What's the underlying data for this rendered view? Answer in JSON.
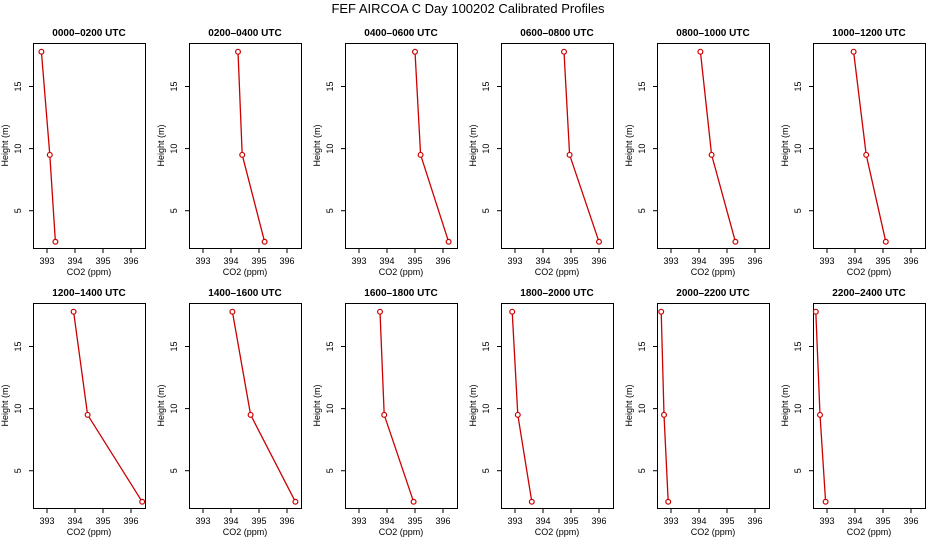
{
  "title": "FEF AIRCOA C  Day 100202  Calibrated Profiles",
  "chart_data": [
    {
      "type": "line",
      "title": "0000–0200 UTC",
      "xlabel": "CO2 (ppm)",
      "ylabel": "Height (m)",
      "xlim": [
        392.5,
        396.5
      ],
      "ylim": [
        2,
        18.5
      ],
      "xticks": [
        393,
        394,
        395,
        396
      ],
      "yticks": [
        5,
        10,
        15
      ],
      "grid": false,
      "series": [
        {
          "color": "#cc0000",
          "x": [
            393.3,
            393.1,
            392.8
          ],
          "y": [
            2.5,
            9.5,
            17.8
          ]
        }
      ]
    },
    {
      "type": "line",
      "title": "0200–0400 UTC",
      "xlabel": "CO2 (ppm)",
      "ylabel": "Height (m)",
      "xlim": [
        392.5,
        396.5
      ],
      "ylim": [
        2,
        18.5
      ],
      "xticks": [
        393,
        394,
        395,
        396
      ],
      "yticks": [
        5,
        10,
        15
      ],
      "grid": false,
      "series": [
        {
          "color": "#cc0000",
          "x": [
            395.2,
            394.4,
            394.25
          ],
          "y": [
            2.5,
            9.5,
            17.8
          ]
        }
      ]
    },
    {
      "type": "line",
      "title": "0400–0600 UTC",
      "xlabel": "CO2 (ppm)",
      "ylabel": "Height (m)",
      "xlim": [
        392.5,
        396.5
      ],
      "ylim": [
        2,
        18.5
      ],
      "xticks": [
        393,
        394,
        395,
        396
      ],
      "yticks": [
        5,
        10,
        15
      ],
      "grid": false,
      "series": [
        {
          "color": "#cc0000",
          "x": [
            396.2,
            395.2,
            395.0
          ],
          "y": [
            2.5,
            9.5,
            17.8
          ]
        }
      ]
    },
    {
      "type": "line",
      "title": "0600–0800 UTC",
      "xlabel": "CO2 (ppm)",
      "ylabel": "Height (m)",
      "xlim": [
        392.5,
        396.5
      ],
      "ylim": [
        2,
        18.5
      ],
      "xticks": [
        393,
        394,
        395,
        396
      ],
      "yticks": [
        5,
        10,
        15
      ],
      "grid": false,
      "series": [
        {
          "color": "#cc0000",
          "x": [
            396.0,
            394.95,
            394.75
          ],
          "y": [
            2.5,
            9.5,
            17.8
          ]
        }
      ]
    },
    {
      "type": "line",
      "title": "0800–1000 UTC",
      "xlabel": "CO2 (ppm)",
      "ylabel": "Height (m)",
      "xlim": [
        392.5,
        396.5
      ],
      "ylim": [
        2,
        18.5
      ],
      "xticks": [
        393,
        394,
        395,
        396
      ],
      "yticks": [
        5,
        10,
        15
      ],
      "grid": false,
      "series": [
        {
          "color": "#cc0000",
          "x": [
            395.3,
            394.45,
            394.05
          ],
          "y": [
            2.5,
            9.5,
            17.8
          ]
        }
      ]
    },
    {
      "type": "line",
      "title": "1000–1200 UTC",
      "xlabel": "CO2 (ppm)",
      "ylabel": "Height (m)",
      "xlim": [
        392.5,
        396.5
      ],
      "ylim": [
        2,
        18.5
      ],
      "xticks": [
        393,
        394,
        395,
        396
      ],
      "yticks": [
        5,
        10,
        15
      ],
      "grid": false,
      "series": [
        {
          "color": "#cc0000",
          "x": [
            395.1,
            394.4,
            393.95
          ],
          "y": [
            2.5,
            9.5,
            17.8
          ]
        }
      ]
    },
    {
      "type": "line",
      "title": "1200–1400 UTC",
      "xlabel": "CO2 (ppm)",
      "ylabel": "Height (m)",
      "xlim": [
        392.5,
        396.5
      ],
      "ylim": [
        2,
        18.5
      ],
      "xticks": [
        393,
        394,
        395,
        396
      ],
      "yticks": [
        5,
        10,
        15
      ],
      "grid": false,
      "series": [
        {
          "color": "#cc0000",
          "x": [
            396.4,
            394.45,
            393.95
          ],
          "y": [
            2.5,
            9.5,
            17.8
          ]
        }
      ]
    },
    {
      "type": "line",
      "title": "1400–1600 UTC",
      "xlabel": "CO2 (ppm)",
      "ylabel": "Height (m)",
      "xlim": [
        392.5,
        396.5
      ],
      "ylim": [
        2,
        18.5
      ],
      "xticks": [
        393,
        394,
        395,
        396
      ],
      "yticks": [
        5,
        10,
        15
      ],
      "grid": false,
      "series": [
        {
          "color": "#cc0000",
          "x": [
            396.3,
            394.7,
            394.05
          ],
          "y": [
            2.5,
            9.5,
            17.8
          ]
        }
      ]
    },
    {
      "type": "line",
      "title": "1600–1800 UTC",
      "xlabel": "CO2 (ppm)",
      "ylabel": "Height (m)",
      "xlim": [
        392.5,
        396.5
      ],
      "ylim": [
        2,
        18.5
      ],
      "xticks": [
        393,
        394,
        395,
        396
      ],
      "yticks": [
        5,
        10,
        15
      ],
      "grid": false,
      "series": [
        {
          "color": "#cc0000",
          "x": [
            394.95,
            393.9,
            393.75
          ],
          "y": [
            2.5,
            9.5,
            17.8
          ]
        }
      ]
    },
    {
      "type": "line",
      "title": "1800–2000 UTC",
      "xlabel": "CO2 (ppm)",
      "ylabel": "Height (m)",
      "xlim": [
        392.5,
        396.5
      ],
      "ylim": [
        2,
        18.5
      ],
      "xticks": [
        393,
        394,
        395,
        396
      ],
      "yticks": [
        5,
        10,
        15
      ],
      "grid": false,
      "series": [
        {
          "color": "#cc0000",
          "x": [
            393.6,
            393.1,
            392.9
          ],
          "y": [
            2.5,
            9.5,
            17.8
          ]
        }
      ]
    },
    {
      "type": "line",
      "title": "2000–2200 UTC",
      "xlabel": "CO2 (ppm)",
      "ylabel": "Height (m)",
      "xlim": [
        392.5,
        396.5
      ],
      "ylim": [
        2,
        18.5
      ],
      "xticks": [
        393,
        394,
        395,
        396
      ],
      "yticks": [
        5,
        10,
        15
      ],
      "grid": false,
      "series": [
        {
          "color": "#cc0000",
          "x": [
            392.9,
            392.75,
            392.65
          ],
          "y": [
            2.5,
            9.5,
            17.8
          ]
        }
      ]
    },
    {
      "type": "line",
      "title": "2200–2400 UTC",
      "xlabel": "CO2 (ppm)",
      "ylabel": "Height (m)",
      "xlim": [
        392.5,
        396.5
      ],
      "ylim": [
        2,
        18.5
      ],
      "xticks": [
        393,
        394,
        395,
        396
      ],
      "yticks": [
        5,
        10,
        15
      ],
      "grid": false,
      "series": [
        {
          "color": "#cc0000",
          "x": [
            392.95,
            392.75,
            392.6
          ],
          "y": [
            2.5,
            9.5,
            17.8
          ]
        }
      ]
    }
  ]
}
